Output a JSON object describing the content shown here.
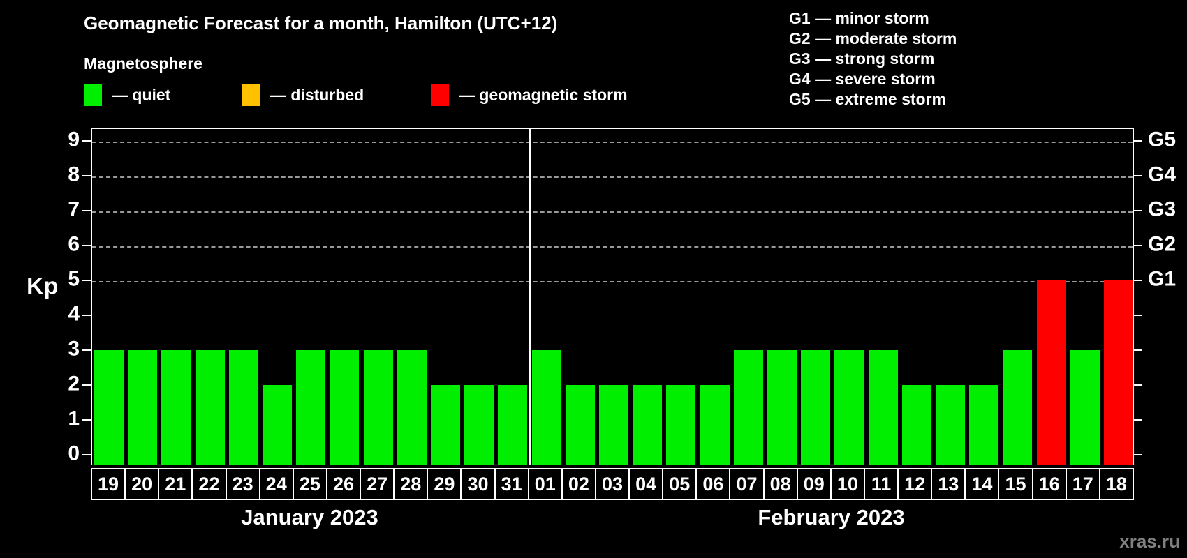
{
  "title": "Geomagnetic Forecast for a month, Hamilton (UTC+12)",
  "subtitle": "Magnetosphere",
  "legend": [
    {
      "key": "quiet",
      "label": "— quiet"
    },
    {
      "key": "disturbed",
      "label": "— disturbed"
    },
    {
      "key": "storm",
      "label": "— geomagnetic storm"
    }
  ],
  "colors": {
    "quiet": "#00ee00",
    "disturbed": "#ffc000",
    "storm": "#ff0000",
    "background": "#000000",
    "axis": "#ffffff",
    "grid": "#999999",
    "watermark": "#808080"
  },
  "storm_scale": [
    {
      "line": "G1 — minor storm"
    },
    {
      "line": "G2 — moderate storm"
    },
    {
      "line": "G3 — strong storm"
    },
    {
      "line": "G4 — severe storm"
    },
    {
      "line": "G5 — extreme storm"
    }
  ],
  "y_axis": {
    "label": "Kp",
    "ticks": [
      0,
      1,
      2,
      3,
      4,
      5,
      6,
      7,
      8,
      9
    ]
  },
  "right_axis": [
    {
      "kp": 5,
      "label": "G1"
    },
    {
      "kp": 6,
      "label": "G2"
    },
    {
      "kp": 7,
      "label": "G3"
    },
    {
      "kp": 8,
      "label": "G4"
    },
    {
      "kp": 9,
      "label": "G5"
    }
  ],
  "watermark": "xras.ru",
  "chart_data": {
    "type": "bar",
    "title": "Geomagnetic Forecast for a month, Hamilton (UTC+12)",
    "xlabel": "",
    "ylabel": "Kp",
    "ylim": [
      0,
      9
    ],
    "grid": "dashed horizontal at Kp 5-9",
    "gridlines_at": [
      5,
      6,
      7,
      8,
      9
    ],
    "months": [
      {
        "label": "January 2023",
        "days": [
          "19",
          "20",
          "21",
          "22",
          "23",
          "24",
          "25",
          "26",
          "27",
          "28",
          "29",
          "30",
          "31"
        ],
        "kp": [
          3,
          3,
          3,
          3,
          3,
          2,
          3,
          3,
          3,
          3,
          2,
          2,
          2
        ],
        "status": [
          "quiet",
          "quiet",
          "quiet",
          "quiet",
          "quiet",
          "quiet",
          "quiet",
          "quiet",
          "quiet",
          "quiet",
          "quiet",
          "quiet",
          "quiet"
        ]
      },
      {
        "label": "February 2023",
        "days": [
          "01",
          "02",
          "03",
          "04",
          "05",
          "06",
          "07",
          "08",
          "09",
          "10",
          "11",
          "12",
          "13",
          "14",
          "15",
          "16",
          "17",
          "18"
        ],
        "kp": [
          3,
          2,
          2,
          2,
          2,
          2,
          3,
          3,
          3,
          3,
          3,
          2,
          2,
          2,
          3,
          5,
          3,
          5
        ],
        "status": [
          "quiet",
          "quiet",
          "quiet",
          "quiet",
          "quiet",
          "quiet",
          "quiet",
          "quiet",
          "quiet",
          "quiet",
          "quiet",
          "quiet",
          "quiet",
          "quiet",
          "quiet",
          "storm",
          "quiet",
          "storm"
        ]
      }
    ]
  }
}
